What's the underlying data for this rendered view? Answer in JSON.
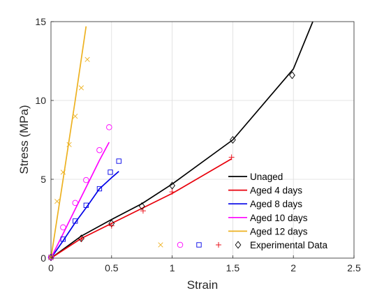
{
  "chart_data": {
    "type": "line",
    "title": "",
    "xlabel": "Strain",
    "ylabel": "Stress (MPa)",
    "xlim": [
      0,
      2.5
    ],
    "ylim": [
      0,
      15
    ],
    "xticks": [
      0,
      0.5,
      1,
      1.5,
      2,
      2.5
    ],
    "xtick_labels": [
      "0",
      "0.5",
      "1",
      "1.5",
      "2",
      "2.5"
    ],
    "yticks": [
      0,
      5,
      10,
      15
    ],
    "ytick_labels": [
      "0",
      "5",
      "10",
      "15"
    ],
    "grid": true,
    "legend_position": "bottom-right",
    "series": [
      {
        "name": "Unaged",
        "color": "#000000",
        "marker": "diamond",
        "line": {
          "x": [
            0,
            0.25,
            0.5,
            0.75,
            1.0,
            1.5,
            2.0,
            2.16
          ],
          "y": [
            0,
            1.4,
            2.45,
            3.45,
            4.7,
            7.5,
            12.0,
            15.0
          ]
        },
        "points": {
          "x": [
            0,
            0.25,
            0.5,
            0.75,
            1.0,
            1.5,
            1.99
          ],
          "y": [
            0.05,
            1.25,
            2.2,
            3.3,
            4.6,
            7.5,
            11.6
          ]
        }
      },
      {
        "name": "Aged 4 days",
        "color": "#e8000b",
        "marker": "plus",
        "line": {
          "x": [
            0,
            0.25,
            0.5,
            0.75,
            1.0,
            1.49
          ],
          "y": [
            0,
            1.25,
            2.2,
            3.15,
            4.1,
            6.3
          ]
        },
        "points": {
          "x": [
            0,
            0.25,
            0.5,
            0.76,
            1.0,
            1.49
          ],
          "y": [
            0.05,
            1.2,
            2.05,
            3.0,
            4.2,
            6.4
          ]
        }
      },
      {
        "name": "Aged 8 days",
        "color": "#0000e8",
        "marker": "square",
        "line": {
          "x": [
            0,
            0.1,
            0.2,
            0.3,
            0.4,
            0.5,
            0.56
          ],
          "y": [
            0,
            1.1,
            2.25,
            3.3,
            4.4,
            5.1,
            5.5
          ]
        },
        "points": {
          "x": [
            0,
            0.1,
            0.2,
            0.29,
            0.4,
            0.49,
            0.56
          ],
          "y": [
            0.05,
            1.2,
            2.35,
            3.35,
            4.4,
            5.45,
            6.15
          ]
        }
      },
      {
        "name": "Aged 10 days",
        "color": "#ff00ff",
        "marker": "circle",
        "line": {
          "x": [
            0,
            0.1,
            0.2,
            0.3,
            0.4,
            0.48
          ],
          "y": [
            0,
            1.55,
            3.1,
            4.65,
            6.2,
            7.35
          ]
        },
        "points": {
          "x": [
            0,
            0.1,
            0.2,
            0.29,
            0.4,
            0.48
          ],
          "y": [
            0.05,
            1.95,
            3.5,
            4.95,
            6.85,
            8.3
          ]
        }
      },
      {
        "name": "Aged 12 days",
        "color": "#edb120",
        "marker": "cross",
        "line": {
          "x": [
            0,
            0.1,
            0.2,
            0.29
          ],
          "y": [
            0,
            5.0,
            10.0,
            14.7
          ]
        },
        "points": {
          "x": [
            0,
            0.05,
            0.1,
            0.15,
            0.2,
            0.25,
            0.3
          ],
          "y": [
            0.05,
            3.6,
            5.45,
            7.2,
            9.0,
            10.8,
            12.6
          ]
        }
      }
    ],
    "legend_extra": {
      "name": "Experimental Data",
      "marker_symbols": [
        "cross",
        "circle",
        "square",
        "plus",
        "diamond"
      ]
    }
  }
}
